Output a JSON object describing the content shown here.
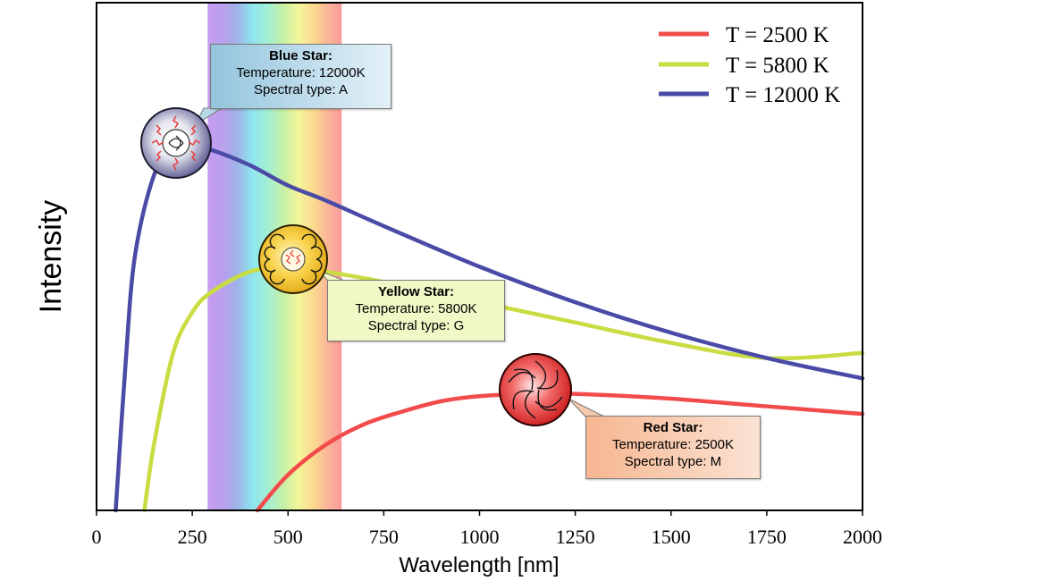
{
  "chart_data": {
    "type": "line",
    "title": "",
    "xlabel": "Wavelength [nm]",
    "ylabel": "Intensity",
    "xlim": [
      0,
      2000
    ],
    "ylim": [
      0,
      1.0
    ],
    "xticks": [
      0,
      250,
      500,
      750,
      1000,
      1250,
      1500,
      1750,
      2000
    ],
    "xtick_labels": [
      "0",
      "250",
      "500",
      "750",
      "1000",
      "1250",
      "1500",
      "1750",
      "2000"
    ],
    "visible_band_nm": [
      290,
      640
    ],
    "legend_position": "top-right",
    "series": [
      {
        "name": "T = 2500 K",
        "temperature_K": 2500,
        "color": "#f24b4b",
        "peak_nm": 1160,
        "peak_intensity": 0.23,
        "x": [
          420,
          500,
          600,
          700,
          800,
          900,
          1000,
          1160,
          1300,
          1500,
          1750,
          2000
        ],
        "y": [
          0.0,
          0.07,
          0.13,
          0.17,
          0.195,
          0.215,
          0.225,
          0.23,
          0.228,
          0.22,
          0.205,
          0.19
        ]
      },
      {
        "name": "T = 5800 K",
        "temperature_K": 5800,
        "color": "#c9dc41",
        "peak_nm": 500,
        "peak_intensity": 0.48,
        "x": [
          125,
          150,
          200,
          250,
          300,
          400,
          500,
          600,
          750,
          1000,
          1250,
          1500,
          1750,
          2000
        ],
        "y": [
          0.0,
          0.13,
          0.31,
          0.39,
          0.43,
          0.47,
          0.48,
          0.47,
          0.45,
          0.41,
          0.37,
          0.33,
          0.3,
          0.31
        ]
      },
      {
        "name": "T = 12000 K",
        "temperature_K": 12000,
        "color": "#4a4aa7",
        "peak_nm": 240,
        "peak_intensity": 0.72,
        "x": [
          50,
          75,
          100,
          150,
          200,
          240,
          300,
          400,
          500,
          600,
          750,
          1000,
          1250,
          1500,
          1750,
          2000
        ],
        "y": [
          0.0,
          0.28,
          0.5,
          0.66,
          0.71,
          0.72,
          0.71,
          0.68,
          0.64,
          0.61,
          0.56,
          0.48,
          0.41,
          0.35,
          0.3,
          0.26
        ]
      }
    ],
    "annotations": [
      {
        "title": "Blue Star:",
        "line1": "Temperature: 12000K",
        "line2": "Spectral type: A",
        "series": "T = 12000 K"
      },
      {
        "title": "Yellow Star:",
        "line1": "Temperature: 5800K",
        "line2": "Spectral type: G",
        "series": "T = 5800 K"
      },
      {
        "title": "Red Star:",
        "line1": "Temperature: 2500K",
        "line2": "Spectral type: M",
        "series": "T = 2500 K"
      }
    ]
  }
}
